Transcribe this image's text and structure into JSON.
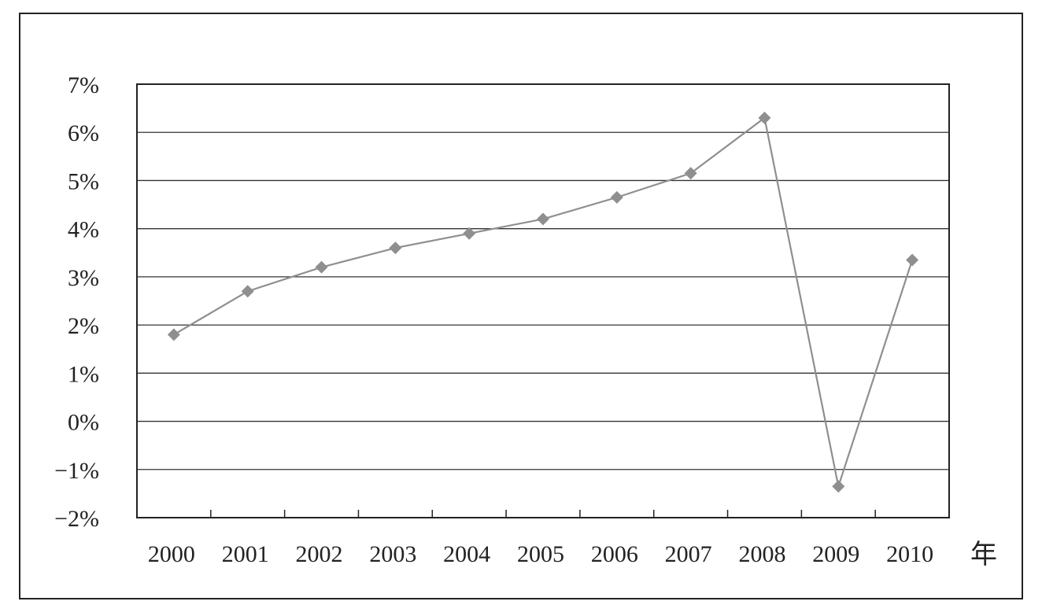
{
  "chart_data": {
    "type": "line",
    "title": "",
    "xlabel": "年",
    "ylabel": "",
    "categories": [
      "2000",
      "2001",
      "2002",
      "2003",
      "2004",
      "2005",
      "2006",
      "2007",
      "2008",
      "2009",
      "2010"
    ],
    "series": [
      {
        "values": [
          1.8,
          2.7,
          3.2,
          3.6,
          3.9,
          4.2,
          4.65,
          5.15,
          6.3,
          -1.35,
          3.35
        ],
        "color": "#8f8f8f",
        "marker": "diamond"
      }
    ],
    "ylim": [
      -2,
      7
    ],
    "yticks": [
      "7%",
      "6%",
      "5%",
      "4%",
      "3%",
      "2%",
      "1%",
      "0%",
      "−1%",
      "−2%"
    ],
    "grid": true,
    "legend": "none"
  }
}
